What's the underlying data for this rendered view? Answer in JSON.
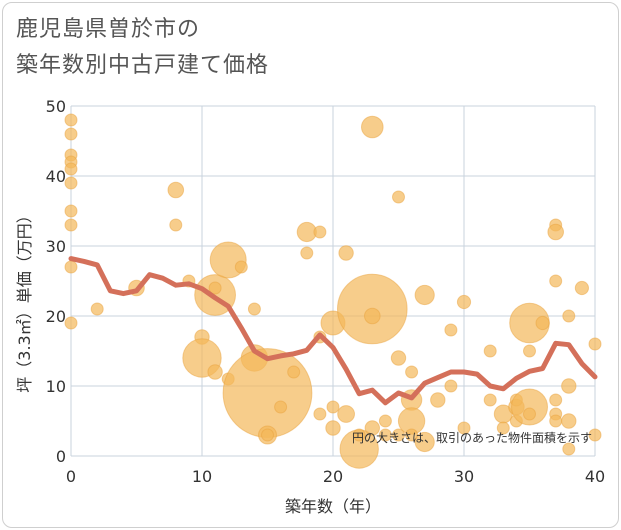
{
  "title_line1": "鹿児島県曽於市の",
  "title_line2": "築年数別中古戸建て価格",
  "colors": {
    "bubble": "#F4B85A",
    "bubble_stroke": "#E9A43F",
    "line": "#D4705A",
    "grid": "#c8d3de",
    "border": "#cfcfcf"
  },
  "chart_data": {
    "type": "scatter",
    "xlabel": "築年数（年）",
    "ylabel": "坪（3.3㎡）単価（万円）",
    "xlim": [
      0,
      40
    ],
    "ylim": [
      0,
      50
    ],
    "xticks": [
      0,
      10,
      20,
      30,
      40
    ],
    "yticks": [
      0,
      10,
      20,
      30,
      40,
      50
    ],
    "grid": true,
    "note": "円の大きさは、取引のあった物件面積を示す",
    "bubbles": [
      {
        "x": 0,
        "y": 48,
        "s": 1
      },
      {
        "x": 0,
        "y": 46,
        "s": 1
      },
      {
        "x": 0,
        "y": 43,
        "s": 1
      },
      {
        "x": 0,
        "y": 42,
        "s": 1
      },
      {
        "x": 0,
        "y": 41,
        "s": 1
      },
      {
        "x": 0,
        "y": 39,
        "s": 1
      },
      {
        "x": 0,
        "y": 35,
        "s": 1
      },
      {
        "x": 0,
        "y": 33,
        "s": 1
      },
      {
        "x": 0,
        "y": 27,
        "s": 1
      },
      {
        "x": 0,
        "y": 19,
        "s": 1
      },
      {
        "x": 2,
        "y": 21,
        "s": 1
      },
      {
        "x": 5,
        "y": 24,
        "s": 1.3
      },
      {
        "x": 8,
        "y": 38,
        "s": 1.3
      },
      {
        "x": 8,
        "y": 33,
        "s": 1
      },
      {
        "x": 9,
        "y": 25,
        "s": 1
      },
      {
        "x": 10,
        "y": 17,
        "s": 1.2
      },
      {
        "x": 10,
        "y": 14,
        "s": 3.2
      },
      {
        "x": 11,
        "y": 23,
        "s": 3.4
      },
      {
        "x": 11,
        "y": 24,
        "s": 1
      },
      {
        "x": 11,
        "y": 12,
        "s": 1.2
      },
      {
        "x": 12,
        "y": 28,
        "s": 3
      },
      {
        "x": 12,
        "y": 11,
        "s": 1
      },
      {
        "x": 13,
        "y": 27,
        "s": 1
      },
      {
        "x": 14,
        "y": 21,
        "s": 1
      },
      {
        "x": 14,
        "y": 14,
        "s": 2.2
      },
      {
        "x": 15,
        "y": 9,
        "s": 7.4
      },
      {
        "x": 15,
        "y": 3,
        "s": 1.5
      },
      {
        "x": 15,
        "y": 3,
        "s": 1
      },
      {
        "x": 16,
        "y": 7,
        "s": 1
      },
      {
        "x": 17,
        "y": 12,
        "s": 1
      },
      {
        "x": 18,
        "y": 32,
        "s": 1.6
      },
      {
        "x": 18,
        "y": 29,
        "s": 1
      },
      {
        "x": 19,
        "y": 32,
        "s": 1
      },
      {
        "x": 19,
        "y": 17,
        "s": 1
      },
      {
        "x": 19,
        "y": 6,
        "s": 1
      },
      {
        "x": 20,
        "y": 19,
        "s": 2
      },
      {
        "x": 20,
        "y": 7,
        "s": 1
      },
      {
        "x": 20,
        "y": 4,
        "s": 1.2
      },
      {
        "x": 21,
        "y": 29,
        "s": 1.2
      },
      {
        "x": 21,
        "y": 6,
        "s": 1.4
      },
      {
        "x": 22,
        "y": 1,
        "s": 3.2
      },
      {
        "x": 22,
        "y": 3,
        "s": 1
      },
      {
        "x": 23,
        "y": 47,
        "s": 1.8
      },
      {
        "x": 23,
        "y": 21,
        "s": 5.8
      },
      {
        "x": 23,
        "y": 20,
        "s": 1.3
      },
      {
        "x": 23,
        "y": 4,
        "s": 1.2
      },
      {
        "x": 24,
        "y": 5,
        "s": 1
      },
      {
        "x": 24,
        "y": 3,
        "s": 1
      },
      {
        "x": 25,
        "y": 37,
        "s": 1
      },
      {
        "x": 25,
        "y": 14,
        "s": 1.2
      },
      {
        "x": 25,
        "y": 3,
        "s": 1
      },
      {
        "x": 26,
        "y": 12,
        "s": 1
      },
      {
        "x": 26,
        "y": 8,
        "s": 1.7
      },
      {
        "x": 26,
        "y": 5,
        "s": 2.2
      },
      {
        "x": 26,
        "y": 3,
        "s": 1
      },
      {
        "x": 27,
        "y": 23,
        "s": 1.6
      },
      {
        "x": 27,
        "y": 2,
        "s": 1.6
      },
      {
        "x": 28,
        "y": 8,
        "s": 1.2
      },
      {
        "x": 29,
        "y": 18,
        "s": 1
      },
      {
        "x": 29,
        "y": 10,
        "s": 1
      },
      {
        "x": 30,
        "y": 22,
        "s": 1.1
      },
      {
        "x": 30,
        "y": 4,
        "s": 1
      },
      {
        "x": 32,
        "y": 15,
        "s": 1
      },
      {
        "x": 32,
        "y": 8,
        "s": 1
      },
      {
        "x": 33,
        "y": 6,
        "s": 1.5
      },
      {
        "x": 33,
        "y": 4,
        "s": 1
      },
      {
        "x": 34,
        "y": 7,
        "s": 1.3
      },
      {
        "x": 34,
        "y": 8,
        "s": 1
      },
      {
        "x": 34,
        "y": 5,
        "s": 1
      },
      {
        "x": 35,
        "y": 19,
        "s": 3.3
      },
      {
        "x": 35,
        "y": 15,
        "s": 1
      },
      {
        "x": 35,
        "y": 7,
        "s": 3
      },
      {
        "x": 35,
        "y": 6,
        "s": 1
      },
      {
        "x": 36,
        "y": 19,
        "s": 1.1
      },
      {
        "x": 37,
        "y": 33,
        "s": 1
      },
      {
        "x": 37,
        "y": 32,
        "s": 1.3
      },
      {
        "x": 37,
        "y": 25,
        "s": 1
      },
      {
        "x": 37,
        "y": 8,
        "s": 1
      },
      {
        "x": 37,
        "y": 6,
        "s": 1
      },
      {
        "x": 37,
        "y": 5,
        "s": 1
      },
      {
        "x": 38,
        "y": 20,
        "s": 1
      },
      {
        "x": 38,
        "y": 10,
        "s": 1.2
      },
      {
        "x": 38,
        "y": 5,
        "s": 1.2
      },
      {
        "x": 38,
        "y": 1,
        "s": 1
      },
      {
        "x": 39,
        "y": 24,
        "s": 1.1
      },
      {
        "x": 40,
        "y": 16,
        "s": 1
      },
      {
        "x": 40,
        "y": 3,
        "s": 1
      }
    ],
    "line": {
      "x": [
        0,
        1,
        2,
        3,
        4,
        5,
        6,
        7,
        8,
        9,
        10,
        11,
        12,
        13,
        14,
        15,
        16,
        17,
        18,
        19,
        20,
        21,
        22,
        23,
        24,
        25,
        26,
        27,
        28,
        29,
        30,
        31,
        32,
        33,
        34,
        35,
        36,
        37,
        38,
        39,
        40
      ],
      "y": [
        28.2,
        27.8,
        27.3,
        23.6,
        23.2,
        23.6,
        25.9,
        25.4,
        24.4,
        24.6,
        23.9,
        22.6,
        21.4,
        18.3,
        15.0,
        13.9,
        14.3,
        14.6,
        15.1,
        17.3,
        15.5,
        12.4,
        8.9,
        9.4,
        7.6,
        9.0,
        8.3,
        10.4,
        11.2,
        12.0,
        12.0,
        11.7,
        10.0,
        9.6,
        11.1,
        12.1,
        12.5,
        16.1,
        15.9,
        13.2,
        11.3
      ]
    }
  }
}
